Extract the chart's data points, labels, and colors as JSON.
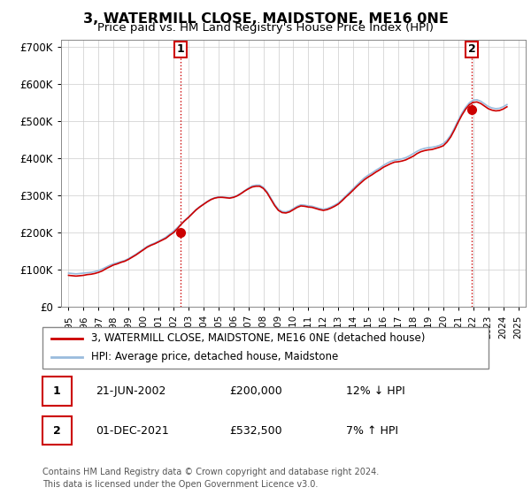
{
  "title": "3, WATERMILL CLOSE, MAIDSTONE, ME16 0NE",
  "subtitle": "Price paid vs. HM Land Registry's House Price Index (HPI)",
  "title_fontsize": 12,
  "subtitle_fontsize": 10,
  "line1_label": "3, WATERMILL CLOSE, MAIDSTONE, ME16 0NE (detached house)",
  "line2_label": "HPI: Average price, detached house, Maidstone",
  "line1_color": "#cc0000",
  "line2_color": "#99bbdd",
  "marker_color": "#cc0000",
  "annotation_box_color": "#cc0000",
  "vline_color": "#cc0000",
  "sale1_date_x": 2002.47,
  "sale1_price": 200000,
  "sale1_label": "1",
  "sale2_date_x": 2021.92,
  "sale2_price": 532500,
  "sale2_label": "2",
  "xlim": [
    1994.5,
    2025.5
  ],
  "ylim": [
    0,
    720000
  ],
  "yticks": [
    0,
    100000,
    200000,
    300000,
    400000,
    500000,
    600000,
    700000
  ],
  "ytick_labels": [
    "£0",
    "£100K",
    "£200K",
    "£300K",
    "£400K",
    "£500K",
    "£600K",
    "£700K"
  ],
  "xtick_years": [
    1995,
    1996,
    1997,
    1998,
    1999,
    2000,
    2001,
    2002,
    2003,
    2004,
    2005,
    2006,
    2007,
    2008,
    2009,
    2010,
    2011,
    2012,
    2013,
    2014,
    2015,
    2016,
    2017,
    2018,
    2019,
    2020,
    2021,
    2022,
    2023,
    2024,
    2025
  ],
  "footer_line1": "Contains HM Land Registry data © Crown copyright and database right 2024.",
  "footer_line2": "This data is licensed under the Open Government Licence v3.0.",
  "table_row1": [
    "1",
    "21-JUN-2002",
    "£200,000",
    "12% ↓ HPI"
  ],
  "table_row2": [
    "2",
    "01-DEC-2021",
    "£532,500",
    "7% ↑ HPI"
  ],
  "hpi_years": [
    1995.0,
    1995.25,
    1995.5,
    1995.75,
    1996.0,
    1996.25,
    1996.5,
    1996.75,
    1997.0,
    1997.25,
    1997.5,
    1997.75,
    1998.0,
    1998.25,
    1998.5,
    1998.75,
    1999.0,
    1999.25,
    1999.5,
    1999.75,
    2000.0,
    2000.25,
    2000.5,
    2000.75,
    2001.0,
    2001.25,
    2001.5,
    2001.75,
    2002.0,
    2002.25,
    2002.5,
    2002.75,
    2003.0,
    2003.25,
    2003.5,
    2003.75,
    2004.0,
    2004.25,
    2004.5,
    2004.75,
    2005.0,
    2005.25,
    2005.5,
    2005.75,
    2006.0,
    2006.25,
    2006.5,
    2006.75,
    2007.0,
    2007.25,
    2007.5,
    2007.75,
    2008.0,
    2008.25,
    2008.5,
    2008.75,
    2009.0,
    2009.25,
    2009.5,
    2009.75,
    2010.0,
    2010.25,
    2010.5,
    2010.75,
    2011.0,
    2011.25,
    2011.5,
    2011.75,
    2012.0,
    2012.25,
    2012.5,
    2012.75,
    2013.0,
    2013.25,
    2013.5,
    2013.75,
    2014.0,
    2014.25,
    2014.5,
    2014.75,
    2015.0,
    2015.25,
    2015.5,
    2015.75,
    2016.0,
    2016.25,
    2016.5,
    2016.75,
    2017.0,
    2017.25,
    2017.5,
    2017.75,
    2018.0,
    2018.25,
    2018.5,
    2018.75,
    2019.0,
    2019.25,
    2019.5,
    2019.75,
    2020.0,
    2020.25,
    2020.5,
    2020.75,
    2021.0,
    2021.25,
    2021.5,
    2021.75,
    2022.0,
    2022.25,
    2022.5,
    2022.75,
    2023.0,
    2023.25,
    2023.5,
    2023.75,
    2024.0,
    2024.25
  ],
  "hpi_values": [
    91000,
    90000,
    89000,
    90000,
    91000,
    92000,
    93000,
    95000,
    98000,
    102000,
    107000,
    112000,
    116000,
    119000,
    122000,
    125000,
    130000,
    136000,
    142000,
    149000,
    156000,
    163000,
    168000,
    172000,
    177000,
    182000,
    188000,
    196000,
    204000,
    213000,
    223000,
    233000,
    242000,
    252000,
    262000,
    270000,
    277000,
    284000,
    290000,
    294000,
    296000,
    296000,
    295000,
    294000,
    296000,
    300000,
    306000,
    313000,
    320000,
    326000,
    328000,
    328000,
    322000,
    310000,
    293000,
    276000,
    263000,
    257000,
    256000,
    259000,
    265000,
    271000,
    275000,
    274000,
    272000,
    271000,
    268000,
    265000,
    263000,
    265000,
    269000,
    274000,
    280000,
    289000,
    299000,
    309000,
    319000,
    329000,
    339000,
    348000,
    355000,
    361000,
    368000,
    374000,
    381000,
    387000,
    392000,
    395000,
    397000,
    399000,
    402000,
    407000,
    413000,
    419000,
    424000,
    427000,
    429000,
    430000,
    432000,
    435000,
    440000,
    449000,
    463000,
    482000,
    503000,
    522000,
    538000,
    550000,
    557000,
    558000,
    554000,
    547000,
    540000,
    536000,
    534000,
    535000,
    539000,
    545000
  ],
  "price_line_years": [
    1995.0,
    1995.25,
    1995.5,
    1995.75,
    1996.0,
    1996.25,
    1996.5,
    1996.75,
    1997.0,
    1997.25,
    1997.5,
    1997.75,
    1998.0,
    1998.25,
    1998.5,
    1998.75,
    1999.0,
    1999.25,
    1999.5,
    1999.75,
    2000.0,
    2000.25,
    2000.5,
    2000.75,
    2001.0,
    2001.25,
    2001.5,
    2001.75,
    2002.0,
    2002.25,
    2002.5,
    2002.75,
    2003.0,
    2003.25,
    2003.5,
    2003.75,
    2004.0,
    2004.25,
    2004.5,
    2004.75,
    2005.0,
    2005.25,
    2005.5,
    2005.75,
    2006.0,
    2006.25,
    2006.5,
    2006.75,
    2007.0,
    2007.25,
    2007.5,
    2007.75,
    2008.0,
    2008.25,
    2008.5,
    2008.75,
    2009.0,
    2009.25,
    2009.5,
    2009.75,
    2010.0,
    2010.25,
    2010.5,
    2010.75,
    2011.0,
    2011.25,
    2011.5,
    2011.75,
    2012.0,
    2012.25,
    2012.5,
    2012.75,
    2013.0,
    2013.25,
    2013.5,
    2013.75,
    2014.0,
    2014.25,
    2014.5,
    2014.75,
    2015.0,
    2015.25,
    2015.5,
    2015.75,
    2016.0,
    2016.25,
    2016.5,
    2016.75,
    2017.0,
    2017.25,
    2017.5,
    2017.75,
    2018.0,
    2018.25,
    2018.5,
    2018.75,
    2019.0,
    2019.25,
    2019.5,
    2019.75,
    2020.0,
    2020.25,
    2020.5,
    2020.75,
    2021.0,
    2021.25,
    2021.5,
    2021.75,
    2022.0,
    2022.25,
    2022.5,
    2022.75,
    2023.0,
    2023.25,
    2023.5,
    2023.75,
    2024.0,
    2024.25
  ],
  "price_line_values": [
    85000,
    84000,
    83000,
    84000,
    85000,
    87000,
    88000,
    90000,
    93000,
    97000,
    103000,
    108000,
    113000,
    116000,
    120000,
    123000,
    128000,
    134000,
    140000,
    147000,
    154000,
    161000,
    166000,
    170000,
    175000,
    180000,
    185000,
    193000,
    200000,
    210000,
    222000,
    232000,
    241000,
    251000,
    261000,
    269000,
    276000,
    283000,
    289000,
    293000,
    295000,
    295000,
    294000,
    293000,
    295000,
    299000,
    305000,
    312000,
    318000,
    323000,
    325000,
    325000,
    319000,
    307000,
    290000,
    273000,
    260000,
    254000,
    253000,
    256000,
    262000,
    268000,
    272000,
    271000,
    269000,
    268000,
    265000,
    262000,
    260000,
    262000,
    266000,
    271000,
    277000,
    286000,
    296000,
    305000,
    315000,
    325000,
    334000,
    343000,
    350000,
    356000,
    363000,
    369000,
    376000,
    381000,
    386000,
    390000,
    391000,
    393000,
    396000,
    401000,
    406000,
    413000,
    418000,
    421000,
    423000,
    424000,
    427000,
    430000,
    434000,
    444000,
    458000,
    477000,
    498000,
    517000,
    533000,
    545000,
    551000,
    552000,
    548000,
    541000,
    534000,
    530000,
    528000,
    529000,
    533000,
    539000
  ]
}
